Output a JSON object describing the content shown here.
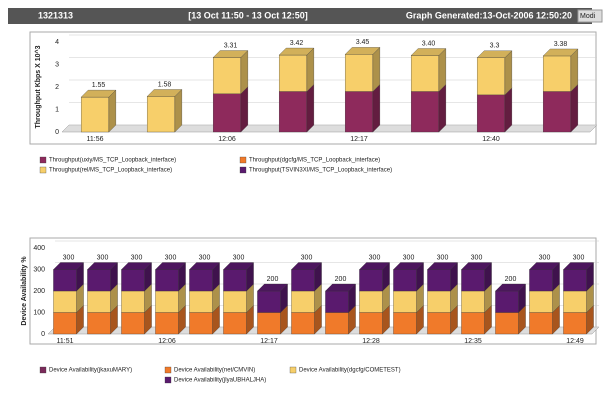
{
  "header": {
    "id": "1321313",
    "range": "[13 Oct 11:50 - 13 Oct 12:50]",
    "generated": "Graph Generated:13-Oct-2006 12:50:20",
    "button": "Modi"
  },
  "chart_data": [
    {
      "type": "bar3d-stacked",
      "ylabel": "Throughput Kbps X 10^3",
      "categories": [
        "11:56",
        null,
        "12:06",
        null,
        "12:17",
        null,
        "12:40",
        null
      ],
      "ylim": [
        0,
        4
      ],
      "yticks": [
        0,
        1,
        2,
        3,
        4
      ],
      "total_labels": [
        "1.55",
        "1.58",
        "3.31",
        "3.42",
        "3.45",
        "3.40",
        "3.3",
        "3.38"
      ],
      "series": [
        {
          "name": "Throughput(uxiy/MS_TCP_Loopback_interface)",
          "color": "#8e2a5c",
          "values": [
            0,
            0,
            1.7,
            1.8,
            1.8,
            1.8,
            1.65,
            1.8
          ]
        },
        {
          "name": "Throughput(dgcfg/MS_TCP_Loopback_interface)",
          "color": "#f07a2a",
          "values": [
            0,
            0,
            0,
            0,
            0,
            0,
            0,
            0
          ]
        },
        {
          "name": "Throughput(rel/MS_TCP_Loopback_interface)",
          "color": "#f7cf6a",
          "values": [
            1.55,
            1.58,
            1.61,
            1.62,
            1.65,
            1.6,
            1.65,
            1.58
          ]
        },
        {
          "name": "Throughput(TSVIN3XI/MS_TCP_Loopback_interface)",
          "color": "#5a1a6e",
          "values": [
            0,
            0,
            0,
            0,
            0,
            0,
            0,
            0
          ]
        }
      ]
    },
    {
      "type": "bar3d-stacked",
      "ylabel": "Device Availability %",
      "categories": [
        "11:51",
        null,
        null,
        "12:06",
        null,
        null,
        "12:17",
        null,
        null,
        "12:28",
        null,
        null,
        "12:35",
        null,
        null,
        "12:49"
      ],
      "ylim": [
        0,
        400
      ],
      "yticks": [
        0,
        100,
        200,
        300,
        400
      ],
      "total_labels": [
        "300",
        "300",
        "300",
        "300",
        "300",
        "300",
        "200",
        "300",
        "200",
        "300",
        "300",
        "300",
        "300",
        "200",
        "300",
        "300"
      ],
      "series": [
        {
          "name": "Device Availability(jkaxuMARY)",
          "color": "#7a2a5a",
          "values": [
            0,
            0,
            0,
            0,
            0,
            0,
            0,
            0,
            0,
            0,
            0,
            0,
            0,
            0,
            0,
            0
          ]
        },
        {
          "name": "Device Availability(net/CMVIN)",
          "color": "#f07a2a",
          "values": [
            100,
            100,
            100,
            100,
            100,
            100,
            100,
            100,
            100,
            100,
            100,
            100,
            100,
            100,
            100,
            100
          ]
        },
        {
          "name": "Device Availability(dgcfg/COMETEST)",
          "color": "#f7cf6a",
          "values": [
            100,
            100,
            100,
            100,
            100,
            100,
            0,
            100,
            0,
            100,
            100,
            100,
            100,
            0,
            100,
            100
          ]
        },
        {
          "name": "Device Availability(jlyaUBHALJHA)",
          "color": "#5a1a6e",
          "values": [
            100,
            100,
            100,
            100,
            100,
            100,
            100,
            100,
            100,
            100,
            100,
            100,
            100,
            100,
            100,
            100
          ]
        }
      ]
    }
  ]
}
